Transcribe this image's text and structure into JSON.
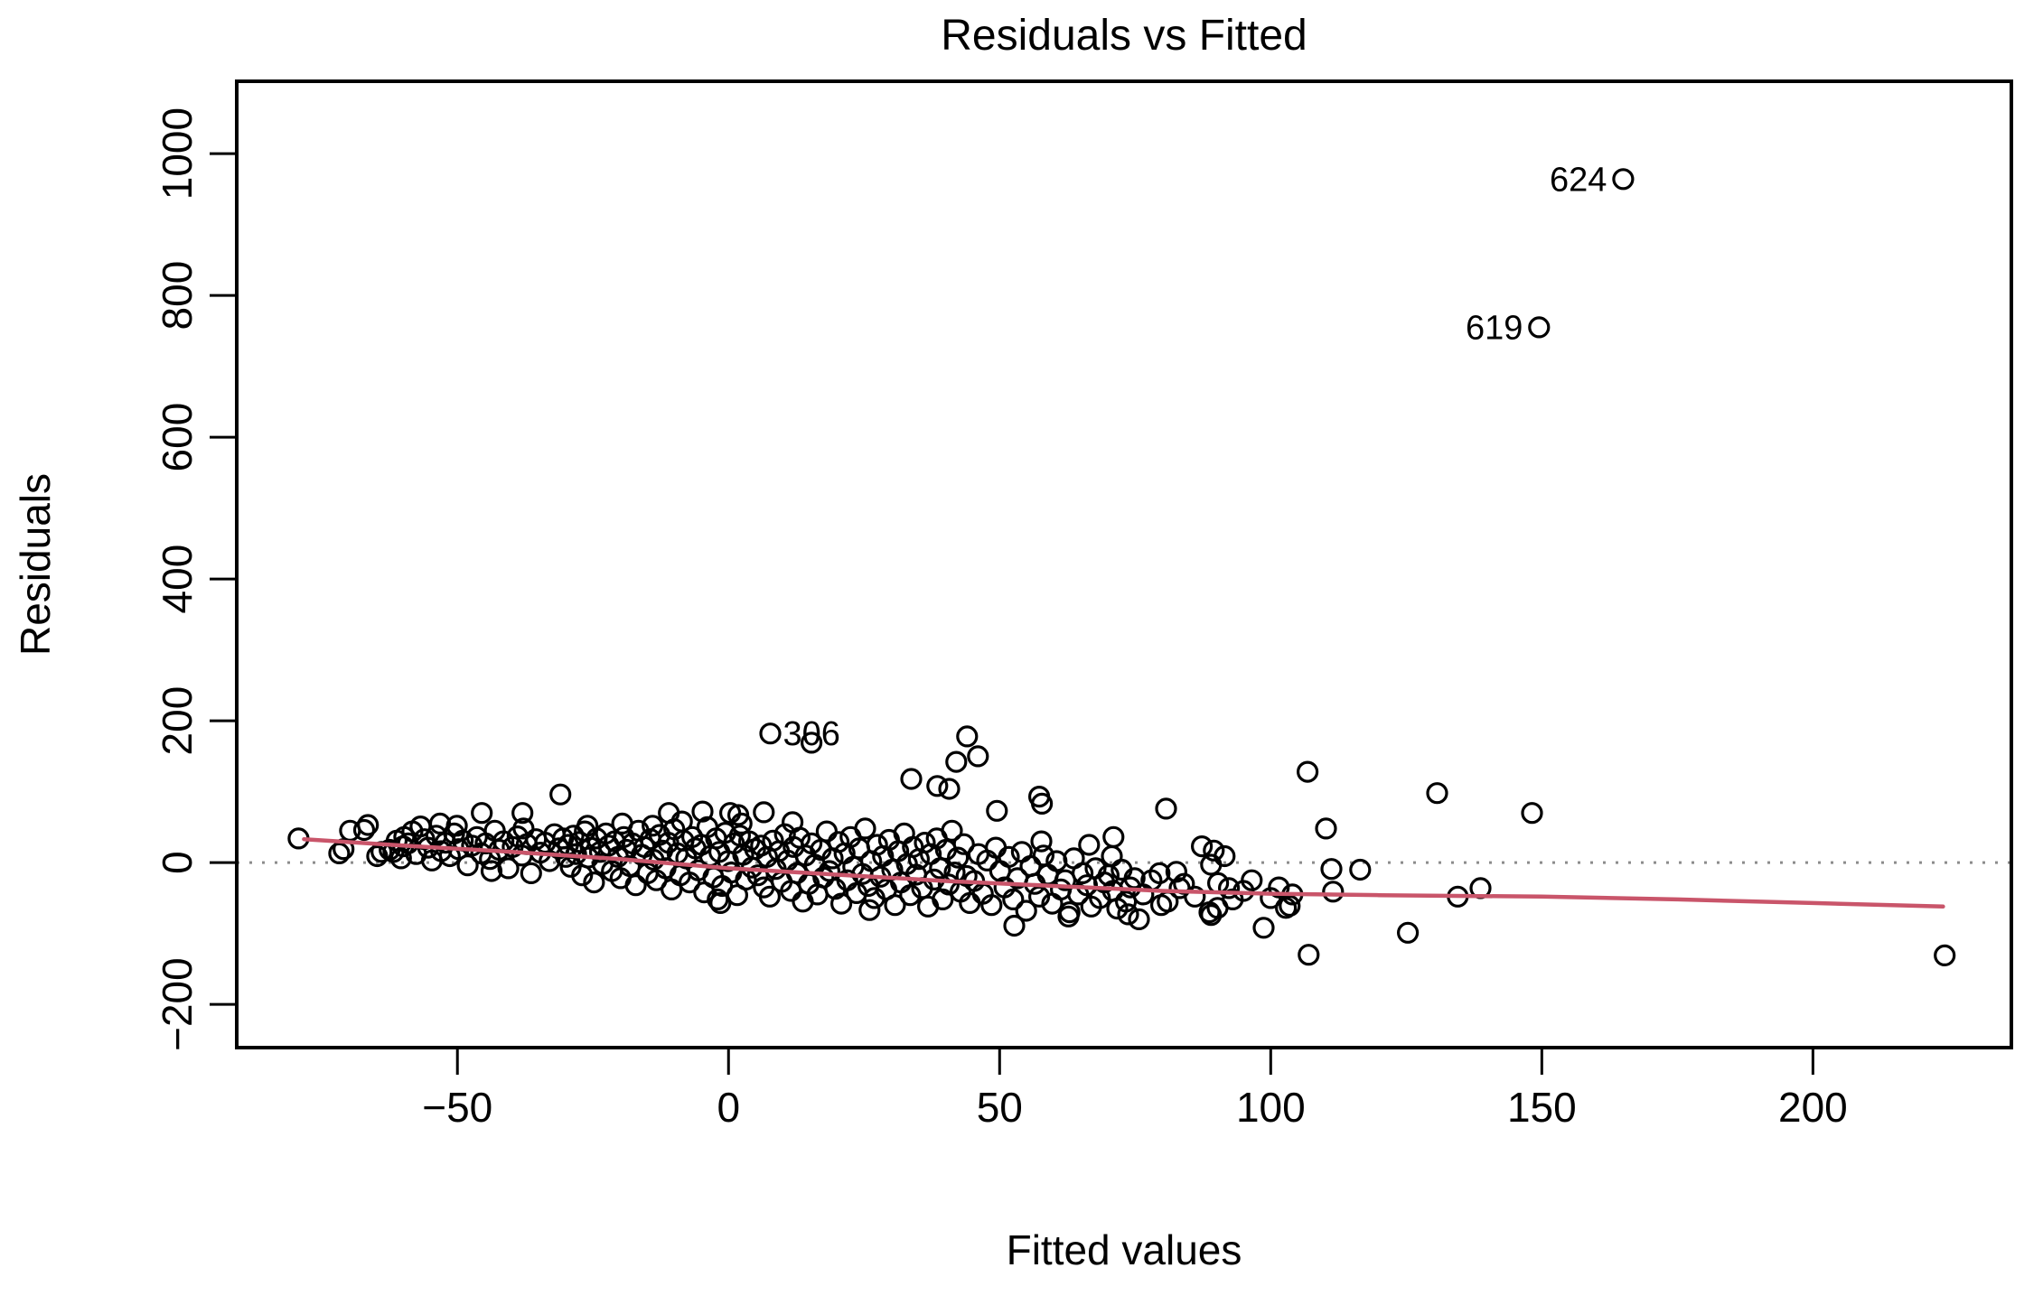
{
  "chart_data": {
    "type": "scatter",
    "title": "Residuals vs Fitted",
    "xlabel": "Fitted values",
    "ylabel": "Residuals",
    "x_tick_values": [
      -50,
      0,
      50,
      100,
      150,
      200
    ],
    "x_tick_labels": [
      "−50",
      "0",
      "50",
      "100",
      "150",
      "200"
    ],
    "y_tick_values": [
      -200,
      0,
      200,
      400,
      600,
      800,
      1000
    ],
    "y_tick_labels": [
      "−200",
      "0",
      "200",
      "400",
      "600",
      "800",
      "1000"
    ],
    "xlim": [
      -90.7,
      236.6
    ],
    "ylim": [
      -261,
      1102
    ],
    "grid": false,
    "legend": null,
    "marker": {
      "shape": "open-circle",
      "color": "#000000",
      "radius": 10.5,
      "stroke_width": 3.2
    },
    "zero_line": {
      "y": 0,
      "style": "dotted",
      "color": "#8c8c8c"
    },
    "smoother": {
      "color": "#c9556a",
      "width": 4.5,
      "points": [
        [
          -78.3,
          33
        ],
        [
          -60,
          24
        ],
        [
          -40,
          15
        ],
        [
          -20,
          5
        ],
        [
          0,
          -8
        ],
        [
          20,
          -17
        ],
        [
          40,
          -26
        ],
        [
          60,
          -33
        ],
        [
          80,
          -40
        ],
        [
          100,
          -44
        ],
        [
          120,
          -46
        ],
        [
          150,
          -48
        ],
        [
          175,
          -52
        ],
        [
          200,
          -57
        ],
        [
          224,
          -62
        ]
      ]
    },
    "labeled_points": [
      {
        "x": 165,
        "y": 964,
        "label": "624",
        "side": "left"
      },
      {
        "x": 149.5,
        "y": 755,
        "label": "619",
        "side": "left"
      },
      {
        "x": 7.7,
        "y": 182,
        "label": "306",
        "side": "right"
      }
    ],
    "points": [
      [
        -79.3,
        34
      ],
      [
        -71.8,
        13
      ],
      [
        -71,
        19
      ],
      [
        -69.8,
        45
      ],
      [
        -67.2,
        46
      ],
      [
        -66.5,
        53
      ],
      [
        -64.8,
        9
      ],
      [
        -64,
        15
      ],
      [
        -61.8,
        15
      ],
      [
        -60,
        23
      ],
      [
        -59.8,
        36
      ],
      [
        -56.8,
        51
      ],
      [
        -53.2,
        55
      ],
      [
        -45.5,
        70
      ],
      [
        -38,
        70
      ],
      [
        -31,
        96
      ],
      [
        -11,
        70
      ],
      [
        -4.8,
        72
      ],
      [
        0.3,
        70
      ],
      [
        6.5,
        71
      ],
      [
        1.8,
        67
      ],
      [
        11.8,
        57
      ],
      [
        26,
        -67
      ],
      [
        -1.5,
        -57
      ],
      [
        33.7,
        118
      ],
      [
        38.5,
        108
      ],
      [
        40.7,
        104
      ],
      [
        42,
        142
      ],
      [
        44,
        178
      ],
      [
        46,
        150
      ],
      [
        15.3,
        169
      ],
      [
        49.5,
        73
      ],
      [
        57.3,
        93
      ],
      [
        57.8,
        83
      ],
      [
        80.7,
        76
      ],
      [
        71,
        36
      ],
      [
        70.7,
        9
      ],
      [
        87.3,
        23
      ],
      [
        89.5,
        17
      ],
      [
        91.5,
        9
      ],
      [
        89,
        -3
      ],
      [
        106.8,
        128
      ],
      [
        130.7,
        98
      ],
      [
        148.2,
        70
      ],
      [
        110.2,
        48
      ],
      [
        82.6,
        -13
      ],
      [
        83.2,
        -36
      ],
      [
        90.3,
        -29
      ],
      [
        92.3,
        -36
      ],
      [
        88.7,
        -70
      ],
      [
        90.2,
        -64
      ],
      [
        98.7,
        -92
      ],
      [
        102.8,
        -64
      ],
      [
        111.2,
        -9
      ],
      [
        116.5,
        -10
      ],
      [
        111.5,
        -41
      ],
      [
        134.5,
        -48
      ],
      [
        138.7,
        -36
      ],
      [
        125.3,
        -99
      ],
      [
        107,
        -130
      ],
      [
        224.3,
        -131
      ],
      [
        79.8,
        -60
      ],
      [
        89,
        -74
      ],
      [
        103.5,
        -61
      ],
      [
        73.7,
        -73
      ],
      [
        75.7,
        -80
      ],
      [
        62.7,
        -76
      ],
      [
        52.7,
        -89
      ],
      [
        -62.5,
        18
      ],
      [
        -61.2,
        31
      ],
      [
        -60.4,
        6
      ],
      [
        -59.1,
        27
      ],
      [
        -58.3,
        44
      ],
      [
        -57.6,
        12
      ],
      [
        -56.1,
        33
      ],
      [
        -55.4,
        21
      ],
      [
        -54.7,
        3
      ],
      [
        -53.9,
        38
      ],
      [
        -53,
        16
      ],
      [
        -52.2,
        28
      ],
      [
        -51.4,
        9
      ],
      [
        -50.6,
        41
      ],
      [
        -49.8,
        19
      ],
      [
        -49,
        31
      ],
      [
        -48.1,
        -4
      ],
      [
        -47.3,
        24
      ],
      [
        -46.4,
        36
      ],
      [
        -45.6,
        13
      ],
      [
        -44.8,
        27
      ],
      [
        -44,
        5
      ],
      [
        -43.1,
        45
      ],
      [
        -42.3,
        18
      ],
      [
        -41.5,
        30
      ],
      [
        -40.6,
        -8
      ],
      [
        -39.8,
        22
      ],
      [
        -38.9,
        37
      ],
      [
        -38.1,
        10
      ],
      [
        -37.2,
        26
      ],
      [
        -36.4,
        -15
      ],
      [
        -35.5,
        33
      ],
      [
        -34.7,
        14
      ],
      [
        -33.8,
        28
      ],
      [
        -33,
        2
      ],
      [
        -32.1,
        40
      ],
      [
        -31.3,
        20
      ],
      [
        -30.5,
        34
      ],
      [
        -30,
        8
      ],
      [
        -43.7,
        -12
      ],
      [
        -37.8,
        48
      ],
      [
        -50.1,
        52
      ],
      [
        -29.6,
        25
      ],
      [
        -29.1,
        -6
      ],
      [
        -28.6,
        38
      ],
      [
        -28.1,
        12
      ],
      [
        -27.5,
        29
      ],
      [
        -27,
        -18
      ],
      [
        -26.5,
        44
      ],
      [
        -25.9,
        7
      ],
      [
        -25.4,
        21
      ],
      [
        -24.8,
        -28
      ],
      [
        -24.3,
        34
      ],
      [
        -23.7,
        15
      ],
      [
        -23.2,
        -2
      ],
      [
        -22.6,
        41
      ],
      [
        -22.1,
        24
      ],
      [
        -21.5,
        -12
      ],
      [
        -21,
        30
      ],
      [
        -20.4,
        8
      ],
      [
        -19.9,
        -22
      ],
      [
        -19.3,
        36
      ],
      [
        -18.8,
        18
      ],
      [
        -18.2,
        -5
      ],
      [
        -17.7,
        27
      ],
      [
        -17.1,
        -32
      ],
      [
        -16.6,
        45
      ],
      [
        -16,
        11
      ],
      [
        -15.5,
        22
      ],
      [
        -14.9,
        -15
      ],
      [
        -14.4,
        33
      ],
      [
        -13.8,
        4
      ],
      [
        -13.3,
        -25
      ],
      [
        -12.7,
        39
      ],
      [
        -12.2,
        17
      ],
      [
        -11.6,
        -8
      ],
      [
        -11.1,
        28
      ],
      [
        -10.5,
        -38
      ],
      [
        -10,
        47
      ],
      [
        -9.4,
        13
      ],
      [
        -8.9,
        -18
      ],
      [
        -8.3,
        31
      ],
      [
        -7.8,
        6
      ],
      [
        -7.2,
        -28
      ],
      [
        -6.7,
        36
      ],
      [
        -6.1,
        20
      ],
      [
        -5.6,
        -11
      ],
      [
        -5,
        25
      ],
      [
        -4.5,
        -42
      ],
      [
        -3.9,
        50
      ],
      [
        -3.4,
        9
      ],
      [
        -2.8,
        -21
      ],
      [
        -2.3,
        34
      ],
      [
        -1.7,
        15
      ],
      [
        -1.2,
        -33
      ],
      [
        -0.6,
        42
      ],
      [
        -0.1,
        2
      ],
      [
        0.5,
        -14
      ],
      [
        1,
        27
      ],
      [
        1.6,
        -46
      ],
      [
        2.1,
        38
      ],
      [
        2.7,
        11
      ],
      [
        3.2,
        -24
      ],
      [
        3.8,
        30
      ],
      [
        4.3,
        -7
      ],
      [
        4.9,
        19
      ],
      [
        -19.6,
        55
      ],
      [
        -8.6,
        58
      ],
      [
        -2,
        -52
      ],
      [
        2.4,
        55
      ],
      [
        -26,
        52
      ],
      [
        -14,
        52
      ],
      [
        5.4,
        -18
      ],
      [
        6,
        24
      ],
      [
        6.5,
        -35
      ],
      [
        7.1,
        8
      ],
      [
        7.6,
        -48
      ],
      [
        8.2,
        31
      ],
      [
        8.7,
        -9
      ],
      [
        9.3,
        16
      ],
      [
        9.8,
        -27
      ],
      [
        10.4,
        40
      ],
      [
        10.9,
        3
      ],
      [
        11.5,
        -40
      ],
      [
        12,
        22
      ],
      [
        12.6,
        -15
      ],
      [
        13.1,
        35
      ],
      [
        13.7,
        -55
      ],
      [
        14.2,
        10
      ],
      [
        14.8,
        -30
      ],
      [
        15.3,
        27
      ],
      [
        15.9,
        -3
      ],
      [
        16.4,
        -45
      ],
      [
        17,
        18
      ],
      [
        17.5,
        -21
      ],
      [
        18.1,
        44
      ],
      [
        18.6,
        -12
      ],
      [
        19.2,
        6
      ],
      [
        19.7,
        -37
      ],
      [
        20.3,
        29
      ],
      [
        20.8,
        -58
      ],
      [
        21.4,
        13
      ],
      [
        21.9,
        -25
      ],
      [
        22.5,
        36
      ],
      [
        23,
        -6
      ],
      [
        23.6,
        -43
      ],
      [
        24.1,
        20
      ],
      [
        24.7,
        -16
      ],
      [
        25.2,
        48
      ],
      [
        25.8,
        -33
      ],
      [
        26.3,
        2
      ],
      [
        26.9,
        -50
      ],
      [
        27.4,
        25
      ],
      [
        28,
        -20
      ],
      [
        28.5,
        9
      ],
      [
        29.1,
        -38
      ],
      [
        29.6,
        32
      ],
      [
        30.2,
        -10
      ],
      [
        30.7,
        -60
      ],
      [
        31.3,
        16
      ],
      [
        31.8,
        -28
      ],
      [
        32.4,
        41
      ],
      [
        32.9,
        -2
      ],
      [
        33.5,
        -46
      ],
      [
        34,
        22
      ],
      [
        34.6,
        -17
      ],
      [
        35.1,
        5
      ],
      [
        35.7,
        -36
      ],
      [
        36.2,
        28
      ],
      [
        36.8,
        -62
      ],
      [
        37.3,
        12
      ],
      [
        37.9,
        -24
      ],
      [
        38.4,
        34
      ],
      [
        39,
        -8
      ],
      [
        39.5,
        -52
      ],
      [
        40.1,
        18
      ],
      [
        40.6,
        -31
      ],
      [
        41.2,
        45
      ],
      [
        41.7,
        -14
      ],
      [
        42.3,
        7
      ],
      [
        42.8,
        -41
      ],
      [
        43.4,
        26
      ],
      [
        43.9,
        -19
      ],
      [
        44.5,
        -57
      ],
      [
        45.3,
        -26
      ],
      [
        46.1,
        12
      ],
      [
        46.9,
        -44
      ],
      [
        47.7,
        3
      ],
      [
        48.5,
        -60
      ],
      [
        49.3,
        21
      ],
      [
        50.1,
        -12
      ],
      [
        50.9,
        -35
      ],
      [
        51.7,
        8
      ],
      [
        52.5,
        -52
      ],
      [
        53.3,
        -22
      ],
      [
        54.1,
        15
      ],
      [
        54.9,
        -68
      ],
      [
        55.7,
        -5
      ],
      [
        56.5,
        -30
      ],
      [
        57.3,
        -48
      ],
      [
        58.1,
        10
      ],
      [
        58.9,
        -17
      ],
      [
        59.7,
        -58
      ],
      [
        60.5,
        2
      ],
      [
        61.3,
        -38
      ],
      [
        62.1,
        -25
      ],
      [
        62.9,
        -70
      ],
      [
        63.7,
        6
      ],
      [
        64.5,
        -45
      ],
      [
        65.3,
        -15
      ],
      [
        66.1,
        -32
      ],
      [
        66.9,
        -62
      ],
      [
        67.7,
        -8
      ],
      [
        68.5,
        -50
      ],
      [
        69.3,
        -28
      ],
      [
        70.1,
        -18
      ],
      [
        70.9,
        -40
      ],
      [
        71.7,
        -65
      ],
      [
        72.5,
        -10
      ],
      [
        73.3,
        -55
      ],
      [
        74.1,
        -35
      ],
      [
        74.9,
        -22
      ],
      [
        57.7,
        30
      ],
      [
        66.5,
        25
      ],
      [
        76.5,
        -45
      ],
      [
        78,
        -25
      ],
      [
        79.5,
        -15
      ],
      [
        81,
        -55
      ],
      [
        84,
        -30
      ],
      [
        86,
        -48
      ],
      [
        93,
        -52
      ],
      [
        95,
        -40
      ],
      [
        96.5,
        -25
      ],
      [
        100,
        -50
      ],
      [
        104,
        -45
      ],
      [
        101.5,
        -35
      ]
    ]
  }
}
